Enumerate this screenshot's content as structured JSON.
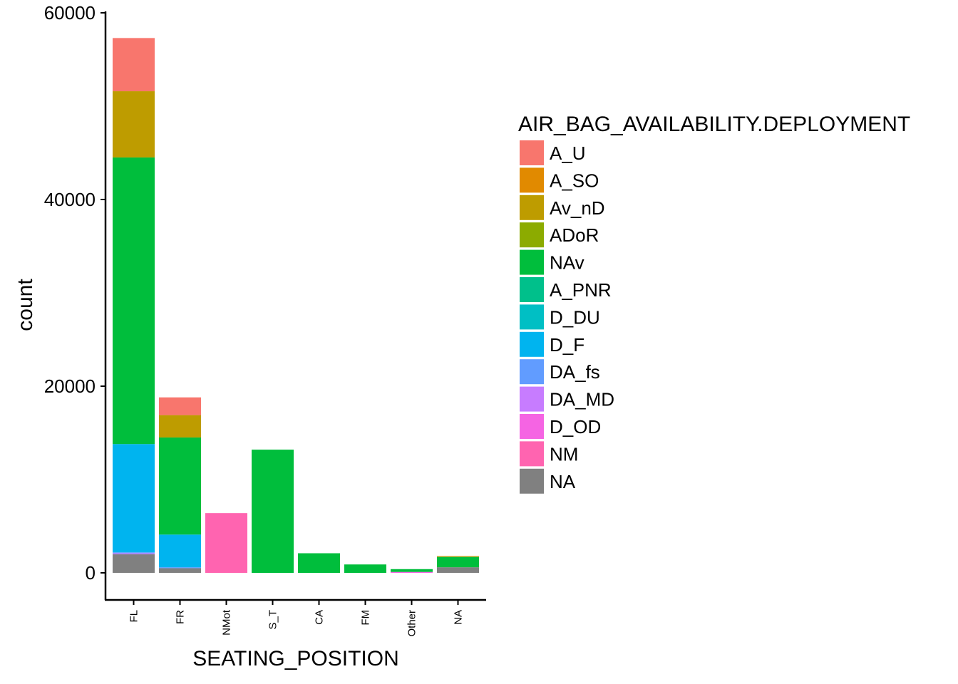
{
  "chart_data": {
    "type": "bar",
    "stacked": true,
    "xlabel": "SEATING_POSITION",
    "ylabel": "count",
    "ylim": [
      0,
      60000
    ],
    "yticks": [
      0,
      20000,
      40000,
      60000
    ],
    "grid": false,
    "legend_position": "right",
    "legend_title": "AIR_BAG_AVAILABILITY.DEPLOYMENT",
    "categories": [
      "FL",
      "FR",
      "NMot",
      "S_T",
      "CA",
      "FM",
      "Other",
      "NA"
    ],
    "legend": [
      {
        "name": "A_U",
        "color": "#F8766D"
      },
      {
        "name": "A_SO",
        "color": "#E18A00"
      },
      {
        "name": "Av_nD",
        "color": "#BE9C00"
      },
      {
        "name": "ADoR",
        "color": "#8CAB00"
      },
      {
        "name": "NAv",
        "color": "#00BE3C"
      },
      {
        "name": "A_PNR",
        "color": "#00C08B"
      },
      {
        "name": "D_DU",
        "color": "#00BFC4"
      },
      {
        "name": "D_F",
        "color": "#00B4EF"
      },
      {
        "name": "DA_fs",
        "color": "#619CFF"
      },
      {
        "name": "DA_MD",
        "color": "#C77CFF"
      },
      {
        "name": "D_OD",
        "color": "#F564E3"
      },
      {
        "name": "NM",
        "color": "#FF64B0"
      },
      {
        "name": "NA",
        "color": "#808080"
      }
    ],
    "series": [
      {
        "name": "A_U",
        "values": [
          5700,
          1900,
          0,
          0,
          0,
          0,
          0,
          0
        ]
      },
      {
        "name": "A_SO",
        "values": [
          0,
          0,
          0,
          0,
          0,
          0,
          0,
          50
        ]
      },
      {
        "name": "Av_nD",
        "values": [
          7100,
          2400,
          0,
          0,
          0,
          0,
          0,
          0
        ]
      },
      {
        "name": "ADoR",
        "values": [
          0,
          0,
          0,
          0,
          0,
          0,
          0,
          50
        ]
      },
      {
        "name": "NAv",
        "values": [
          30700,
          10400,
          0,
          13200,
          2100,
          900,
          300,
          1100
        ]
      },
      {
        "name": "A_PNR",
        "values": [
          0,
          0,
          0,
          0,
          0,
          0,
          0,
          0
        ]
      },
      {
        "name": "D_DU",
        "values": [
          0,
          0,
          0,
          0,
          0,
          0,
          0,
          0
        ]
      },
      {
        "name": "D_F",
        "values": [
          11600,
          3500,
          0,
          0,
          0,
          0,
          0,
          0
        ]
      },
      {
        "name": "DA_fs",
        "values": [
          100,
          100,
          0,
          0,
          0,
          0,
          0,
          0
        ]
      },
      {
        "name": "DA_MD",
        "values": [
          100,
          0,
          0,
          0,
          0,
          0,
          0,
          0
        ]
      },
      {
        "name": "D_OD",
        "values": [
          0,
          0,
          0,
          0,
          0,
          0,
          100,
          0
        ]
      },
      {
        "name": "NM",
        "values": [
          0,
          0,
          6400,
          0,
          0,
          0,
          0,
          0
        ]
      },
      {
        "name": "NA",
        "values": [
          2000,
          500,
          0,
          0,
          0,
          0,
          0,
          600
        ]
      }
    ]
  }
}
